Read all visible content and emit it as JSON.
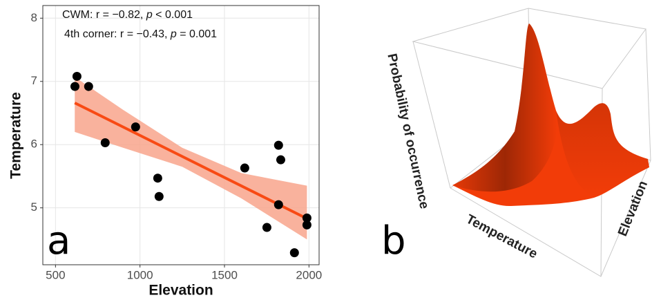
{
  "chart_data": [
    {
      "type": "scatter",
      "x_label": "Elevation",
      "y_label": "Temperature",
      "panel_label": "a",
      "annotations": [
        [
          "CWM: r = −0.82, ",
          "p",
          " < 0.001"
        ],
        [
          "4th corner: r = −0.43, ",
          "p",
          " = 0.001"
        ]
      ],
      "x": [
        615,
        627,
        696,
        794,
        974,
        1105,
        1113,
        1620,
        1751,
        1820,
        1833,
        1820,
        1914,
        1988,
        1988
      ],
      "y": [
        6.92,
        7.08,
        6.92,
        6.03,
        6.28,
        5.47,
        5.18,
        5.63,
        4.69,
        5.99,
        5.76,
        5.05,
        4.29,
        4.84,
        4.73
      ],
      "point_color": "#000000",
      "fit": {
        "x": [
          614,
          1988
        ],
        "y": [
          6.66,
          4.83
        ],
        "color": "#f84a14"
      },
      "band": {
        "x": [
          614,
          900,
          1250,
          1600,
          1988
        ],
        "lower": [
          6.2,
          5.95,
          5.65,
          5.15,
          4.5
        ],
        "upper": [
          7.07,
          6.55,
          5.95,
          5.55,
          5.35
        ],
        "color": "#f8a48c"
      },
      "xlim": [
        425,
        2060
      ],
      "ylim": [
        4.1,
        8.2
      ],
      "xticks": [
        500,
        1000,
        1500,
        2000
      ],
      "yticks": [
        5,
        6,
        7,
        8
      ],
      "grid": true
    },
    {
      "type": "surface3d",
      "panel_label": "b",
      "axis_labels": {
        "z": "Probability of occurrence",
        "x": "Temperature",
        "y": "Elevation"
      },
      "color": "#f23c08"
    }
  ]
}
